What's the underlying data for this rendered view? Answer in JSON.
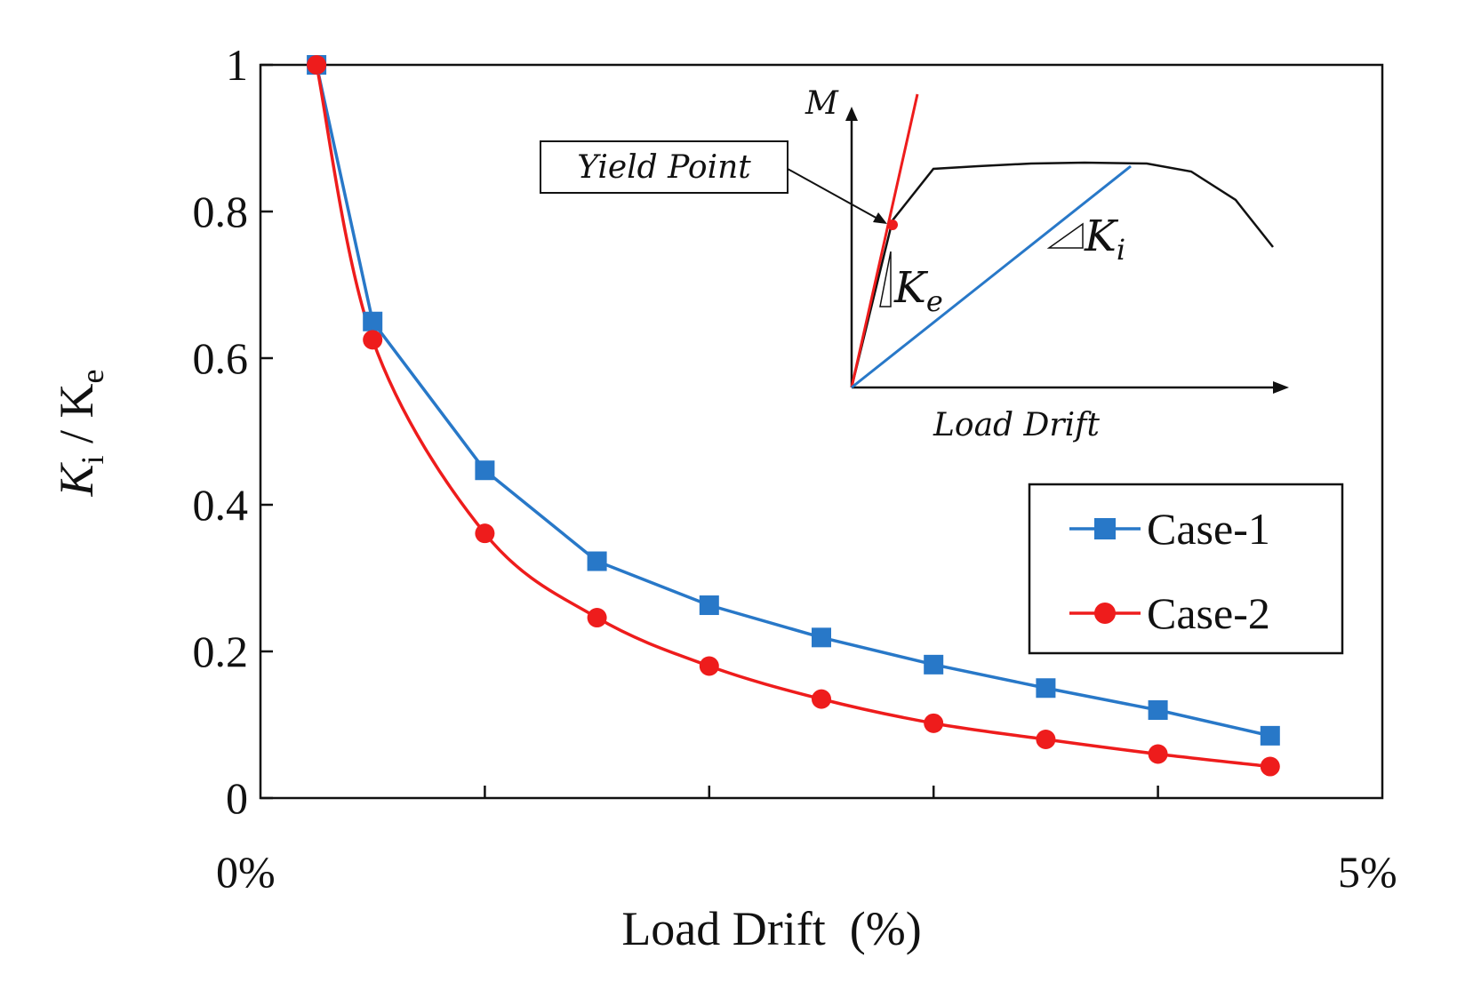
{
  "chart_data": {
    "type": "line",
    "title": "",
    "xlabel": "Load Drift  (%)",
    "ylabel": {
      "k1": "K",
      "sub1": "i",
      "sep": " / ",
      "k2": "K",
      "sub2": "e"
    },
    "xlim": [
      0,
      5
    ],
    "ylim": [
      0,
      1
    ],
    "x_tick_labels": {
      "left": "0%",
      "right": "5%"
    },
    "y_ticks": [
      0,
      0.2,
      0.4,
      0.6,
      0.8,
      1
    ],
    "y_tick_labels": [
      "0",
      "0.2",
      "0.4",
      "0.6",
      "0.8",
      "1"
    ],
    "x_minor_ticks": [
      1,
      2,
      3,
      4
    ],
    "x": [
      0.25,
      0.5,
      1.0,
      1.5,
      2.0,
      2.5,
      3.0,
      3.5,
      4.0,
      4.5
    ],
    "series": [
      {
        "name": "Case-1",
        "color": "#2878c8",
        "marker": "square",
        "smooth": false,
        "values": [
          1.0,
          0.65,
          0.447,
          0.323,
          0.263,
          0.219,
          0.182,
          0.15,
          0.12,
          0.085
        ]
      },
      {
        "name": "Case-2",
        "color": "#ee1c1c",
        "marker": "circle",
        "smooth": true,
        "values": [
          1.0,
          0.625,
          0.361,
          0.246,
          0.18,
          0.135,
          0.102,
          0.08,
          0.06,
          0.043
        ]
      }
    ],
    "legend_position": "lower-right",
    "inset": {
      "y_axis_label": "M",
      "x_axis_label": "Load Drift",
      "callout": "Yield Point",
      "ke_label": {
        "k": "K",
        "sub": "e"
      },
      "ki_label": {
        "k": "K",
        "sub": "i"
      },
      "curve_color": "#000000",
      "ke_color": "#ee1c1c",
      "ki_color": "#2878c8"
    }
  }
}
